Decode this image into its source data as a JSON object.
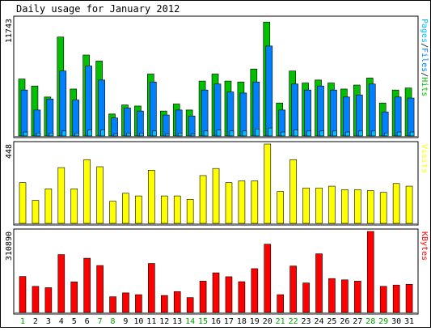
{
  "chart_data": {
    "type": "bar",
    "title": "Daily usage for January 2012",
    "categories": [
      "1",
      "2",
      "3",
      "4",
      "5",
      "6",
      "7",
      "8",
      "9",
      "10",
      "11",
      "12",
      "13",
      "14",
      "15",
      "16",
      "17",
      "18",
      "19",
      "20",
      "21",
      "22",
      "23",
      "24",
      "25",
      "26",
      "27",
      "28",
      "29",
      "30",
      "31"
    ],
    "weekend_days": [
      "1",
      "7",
      "8",
      "14",
      "15",
      "21",
      "22",
      "28",
      "29"
    ],
    "colors": {
      "hits": "#00c000",
      "files": "#0080ff",
      "pages": "#00c0ff",
      "visits": "#ffff00",
      "kbytes": "#ff0000",
      "weekday_label": "#000000",
      "weekend_label": "#00a000"
    },
    "panels": [
      {
        "name": "hits-files-pages",
        "max_label": "11743",
        "legend": [
          {
            "text": "Pages",
            "color": "#00c0ff"
          },
          {
            "text": "/",
            "color": "#000000"
          },
          {
            "text": "Files",
            "color": "#0080ff"
          },
          {
            "text": "/",
            "color": "#000000"
          },
          {
            "text": "Hits",
            "color": "#00c000"
          }
        ],
        "ylim": [
          0,
          11743
        ],
        "series": [
          {
            "name": "Hits",
            "color": "#00c000",
            "values": [
              5700,
              5000,
              3900,
              9900,
              4700,
              8100,
              7500,
              2200,
              3100,
              3000,
              6200,
              2500,
              3200,
              2600,
              5500,
              6200,
              5500,
              5400,
              6700,
              11400,
              3300,
              6500,
              5300,
              5600,
              5300,
              4700,
              5100,
              5800,
              3300,
              4600,
              4800
            ]
          },
          {
            "name": "Files",
            "color": "#0080ff",
            "values": [
              4600,
              2600,
              3700,
              6500,
              3600,
              7000,
              5600,
              1800,
              2800,
              2500,
              5400,
              2100,
              2600,
              2000,
              4600,
              5200,
              4400,
              4300,
              5400,
              9000,
              2600,
              5200,
              4600,
              5000,
              4600,
              3900,
              4100,
              5200,
              2400,
              3900,
              3800
            ]
          },
          {
            "name": "Pages",
            "color": "#00c0ff",
            "values": [
              400,
              300,
              300,
              500,
              300,
              600,
              600,
              200,
              300,
              300,
              500,
              200,
              300,
              200,
              500,
              600,
              500,
              500,
              700,
              800,
              400,
              600,
              500,
              500,
              500,
              400,
              500,
              500,
              300,
              400,
              400
            ]
          }
        ]
      },
      {
        "name": "visits",
        "max_label": "448",
        "legend": [
          {
            "text": "Visits",
            "color": "#ffff00"
          }
        ],
        "ylim": [
          0,
          448
        ],
        "series": [
          {
            "name": "Visits",
            "color": "#ffff00",
            "values": [
              230,
              130,
              195,
              315,
              195,
              360,
              320,
              125,
              170,
              155,
              300,
              155,
              155,
              135,
              270,
              310,
              230,
              240,
              240,
              448,
              180,
              360,
              200,
              200,
              210,
              190,
              190,
              185,
              175,
              225,
              210
            ]
          }
        ]
      },
      {
        "name": "kbytes",
        "max_label": "310890",
        "legend": [
          {
            "text": "KBytes",
            "color": "#ff0000"
          }
        ],
        "ylim": [
          0,
          310890
        ],
        "series": [
          {
            "name": "KBytes",
            "color": "#ff0000",
            "values": [
              138000,
              100000,
              95000,
              222000,
              117000,
              208000,
              180000,
              60000,
              75000,
              68000,
              188000,
              65000,
              80000,
              57000,
              120000,
              152000,
              137000,
              118000,
              168000,
              262000,
              68000,
              178000,
              113000,
              225000,
              130000,
              125000,
              120000,
              310890,
              100000,
              105000,
              108000
            ]
          }
        ]
      }
    ]
  }
}
